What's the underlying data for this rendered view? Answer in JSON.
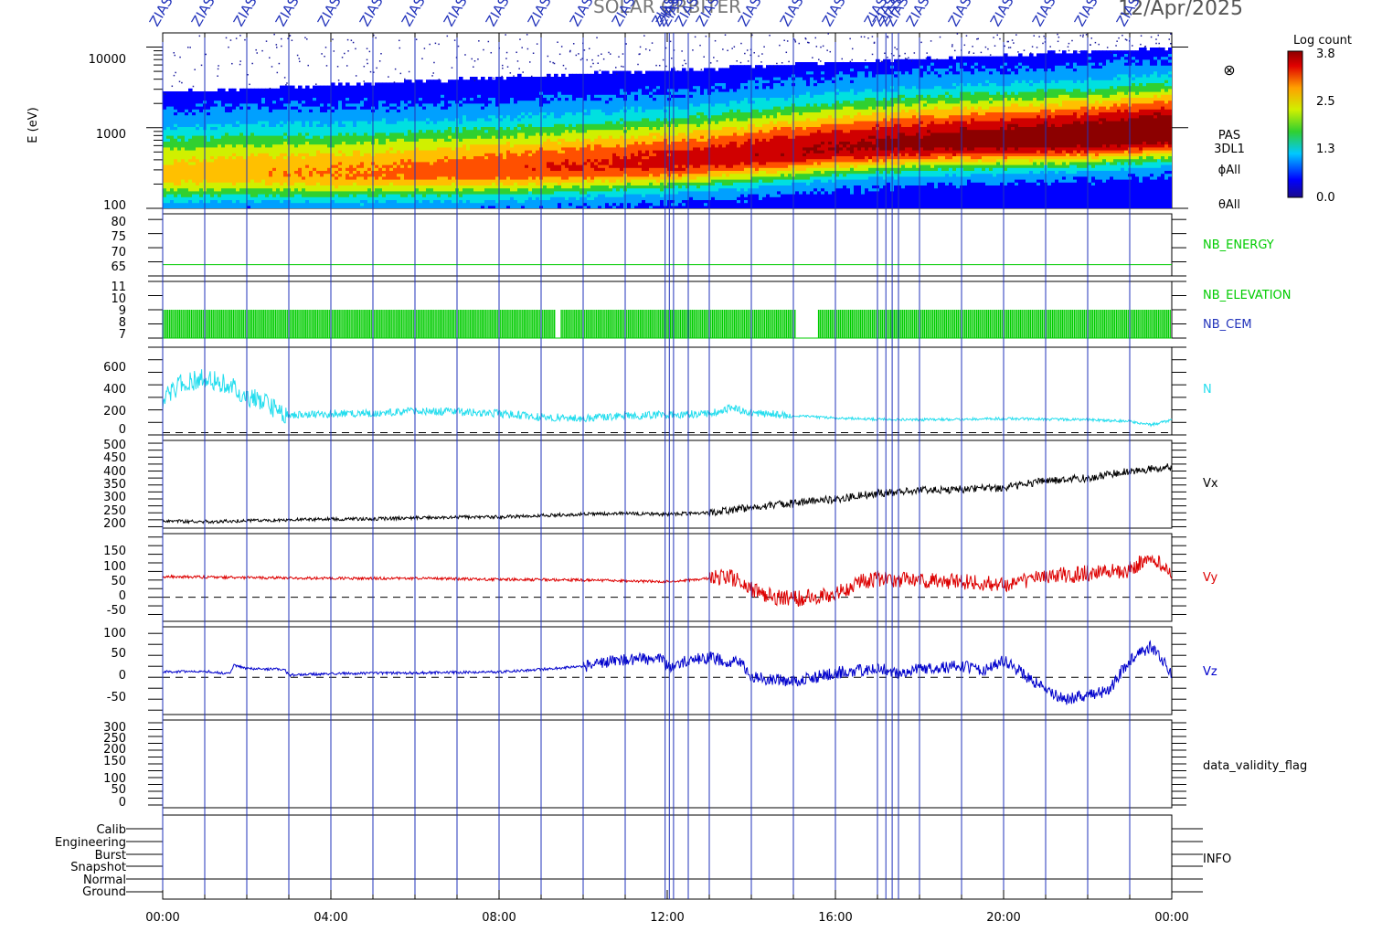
{
  "header": {
    "title": "SOLAR ORBITER",
    "date": "12/Apr/2025",
    "marker_label": "ZIAS"
  },
  "chart_data": [
    {
      "type": "heatmap",
      "ylabel": "E (eV)",
      "yscale": "log",
      "ylim": [
        100,
        15000
      ],
      "yticks": [
        "10000",
        "1000",
        "100"
      ],
      "right_labels": [
        "PAS",
        "3DL1",
        "ϕAll",
        "θAll"
      ],
      "right_symbol": "⊗",
      "colorbar": {
        "title": "Log count",
        "ticks": [
          "3.8",
          "2.5",
          "1.3",
          "0.0"
        ],
        "range": [
          0.0,
          3.8
        ]
      },
      "colors": [
        "#1a0a8c",
        "#0000ff",
        "#00a0ff",
        "#00e0e0",
        "#30d030",
        "#d0f000",
        "#ffc000",
        "#ff5000",
        "#d00000",
        "#8c0000"
      ],
      "peak_energy_eV": {
        "hours": [
          0,
          2,
          4,
          8,
          12,
          14,
          16,
          18,
          20,
          22,
          24
        ],
        "values": [
          260,
          280,
          270,
          300,
          370,
          450,
          560,
          650,
          700,
          760,
          900
        ]
      }
    },
    {
      "type": "line",
      "name": "NB_ENERGY",
      "ylim": [
        60,
        82
      ],
      "yticks": [
        "80",
        "75",
        "70",
        "65"
      ],
      "color": "#00cc00",
      "constant_value": 64
    },
    {
      "type": "line",
      "names": [
        "NB_ELEVATION",
        "NB_CEM"
      ],
      "ylim": [
        7,
        11
      ],
      "yticks": [
        "11",
        "10",
        "9",
        "8",
        "7"
      ],
      "colors": [
        "#00cc00",
        "#2233bb"
      ],
      "oscillation_range": [
        7,
        9
      ],
      "gaps_hours": [
        [
          9.35,
          9.45
        ],
        [
          15.05,
          15.6
        ]
      ]
    },
    {
      "type": "line",
      "series": [
        {
          "name": "N",
          "color": "#22ddee",
          "x": [
            0,
            0.5,
            1,
            1.5,
            2,
            2.5,
            3,
            4,
            5,
            6,
            7,
            8,
            9,
            10,
            11,
            12,
            13,
            13.5,
            14,
            15,
            16,
            17,
            18,
            19,
            20,
            21,
            22,
            23,
            23.5,
            24
          ],
          "values": [
            300,
            450,
            480,
            440,
            330,
            250,
            150,
            170,
            175,
            190,
            185,
            170,
            140,
            130,
            150,
            160,
            170,
            220,
            180,
            150,
            130,
            120,
            115,
            120,
            125,
            120,
            115,
            100,
            70,
            110
          ]
        }
      ],
      "ylim": [
        -20,
        760
      ],
      "yticks": [
        "600",
        "400",
        "200",
        "0"
      ],
      "zero_line": true
    },
    {
      "type": "line",
      "series": [
        {
          "name": "Vx",
          "color": "#000000",
          "x": [
            0,
            1,
            2,
            3,
            4,
            5,
            6,
            7,
            8,
            9,
            10,
            11,
            12,
            13,
            14,
            15,
            16,
            17,
            18,
            19,
            20,
            21,
            22,
            23,
            24
          ],
          "values": [
            220,
            218,
            222,
            225,
            228,
            228,
            232,
            235,
            235,
            240,
            245,
            248,
            245,
            250,
            270,
            285,
            300,
            320,
            330,
            335,
            340,
            365,
            375,
            400,
            415
          ]
        }
      ],
      "ylim": [
        195,
        510
      ],
      "yticks": [
        "500",
        "450",
        "400",
        "350",
        "300",
        "250",
        "200"
      ]
    },
    {
      "type": "line",
      "series": [
        {
          "name": "Vy",
          "color": "#dd0000",
          "x": [
            0,
            2,
            4,
            6,
            8,
            10,
            12,
            13,
            13.5,
            14,
            14.5,
            15,
            16,
            16.5,
            17,
            18,
            19,
            20,
            21,
            22,
            23,
            23.5,
            24
          ],
          "values": [
            60,
            57,
            55,
            55,
            52,
            50,
            45,
            55,
            60,
            20,
            0,
            -5,
            10,
            40,
            55,
            50,
            45,
            35,
            60,
            70,
            80,
            120,
            70
          ]
        }
      ],
      "ylim": [
        -70,
        185
      ],
      "yticks": [
        "150",
        "100",
        "50",
        "0",
        "-50"
      ],
      "zero_line": true
    },
    {
      "type": "line",
      "series": [
        {
          "name": "Vz",
          "color": "#0000cc",
          "x": [
            0,
            1,
            1.6,
            1.7,
            2,
            2.9,
            3,
            4,
            6,
            8,
            9,
            10,
            10.5,
            11,
            11.9,
            12,
            12.5,
            13,
            13.8,
            14,
            15,
            16,
            17,
            17.5,
            18,
            19,
            19.5,
            20,
            21,
            21.5,
            22,
            22.5,
            23,
            23.5,
            24
          ],
          "values": [
            12,
            14,
            8,
            28,
            20,
            18,
            5,
            8,
            10,
            12,
            18,
            25,
            35,
            40,
            42,
            22,
            38,
            45,
            30,
            0,
            -10,
            10,
            20,
            10,
            20,
            25,
            15,
            40,
            -30,
            -50,
            -40,
            -30,
            40,
            70,
            10
          ]
        }
      ],
      "ylim": [
        -85,
        115
      ],
      "yticks": [
        "100",
        "50",
        "0",
        "-50"
      ],
      "zero_line": true
    },
    {
      "type": "line",
      "series": [
        {
          "name": "data_validity_flag",
          "color": "#2233bb",
          "x": [],
          "values": []
        }
      ],
      "ylim": [
        -10,
        310
      ],
      "yticks": [
        "300",
        "250",
        "200",
        "150",
        "100",
        "50",
        "0"
      ]
    },
    {
      "type": "line",
      "series": [
        {
          "name": "INFO",
          "color": "#000000",
          "x": [],
          "values": []
        }
      ],
      "categories": [
        "Calib",
        "Engineering",
        "Burst",
        "Snapshot",
        "Normal",
        "Ground"
      ],
      "normal_segment_hours": [
        0,
        24
      ]
    }
  ],
  "x_axis": {
    "range_hours": [
      0,
      24
    ],
    "tick_labels": [
      "00:00",
      "04:00",
      "08:00",
      "12:00",
      "16:00",
      "20:00",
      "00:00"
    ],
    "tick_hours": [
      0,
      4,
      8,
      12,
      16,
      20,
      24
    ]
  },
  "markers_hours": [
    0,
    1,
    2,
    3,
    4,
    5,
    6,
    7,
    8,
    9,
    10,
    11,
    11.95,
    12.05,
    12.15,
    12.5,
    13,
    14,
    15,
    16,
    17,
    17.2,
    17.35,
    17.5,
    18,
    19,
    20,
    21,
    22,
    23
  ],
  "colors": {
    "marker": "#2233bb",
    "axis": "#000000"
  }
}
